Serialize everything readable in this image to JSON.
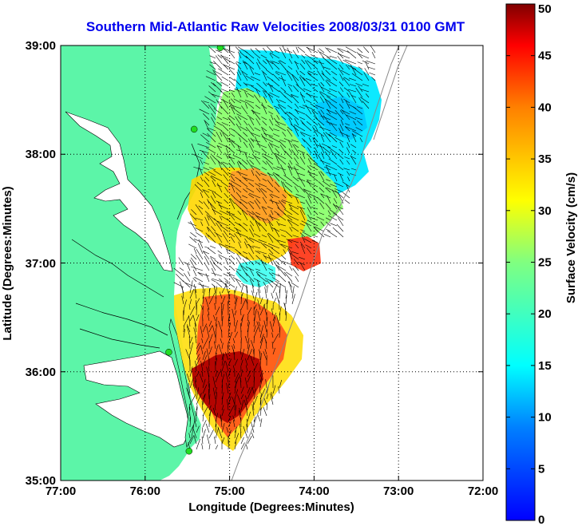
{
  "title": "Southern Mid-Atlantic Raw Velocities 2008/03/31 0100 GMT",
  "x_axis": {
    "label": "Longitude (Degrees:Minutes)",
    "ticks": [
      "77:00",
      "76:00",
      "75:00",
      "74:00",
      "73:00",
      "72:00"
    ]
  },
  "y_axis": {
    "label": "Latitude (Degrees:Minutes)",
    "ticks": [
      "35:00",
      "36:00",
      "37:00",
      "38:00",
      "39:00"
    ]
  },
  "colorbar": {
    "label": "Surface Velocity (cm/s)",
    "ticks": [
      "0",
      "5",
      "10",
      "15",
      "20",
      "25",
      "30",
      "35",
      "40",
      "45",
      "50"
    ],
    "range": [
      0,
      50
    ],
    "colormap": "jet"
  },
  "map": {
    "lon_range": [
      -77,
      -72
    ],
    "lat_range": [
      35,
      39
    ],
    "land_color": "#5cf5a8",
    "water_color": "#ffffff",
    "grid": "dotted",
    "station_color": "#22dd22",
    "stations": [
      {
        "lon": -75.11,
        "lat": 38.98
      },
      {
        "lon": -75.42,
        "lat": 38.23
      },
      {
        "lon": -75.72,
        "lat": 36.18
      },
      {
        "lon": -75.48,
        "lat": 35.27
      }
    ]
  },
  "colors": {
    "title": "#0000ee",
    "text": "#000000"
  }
}
